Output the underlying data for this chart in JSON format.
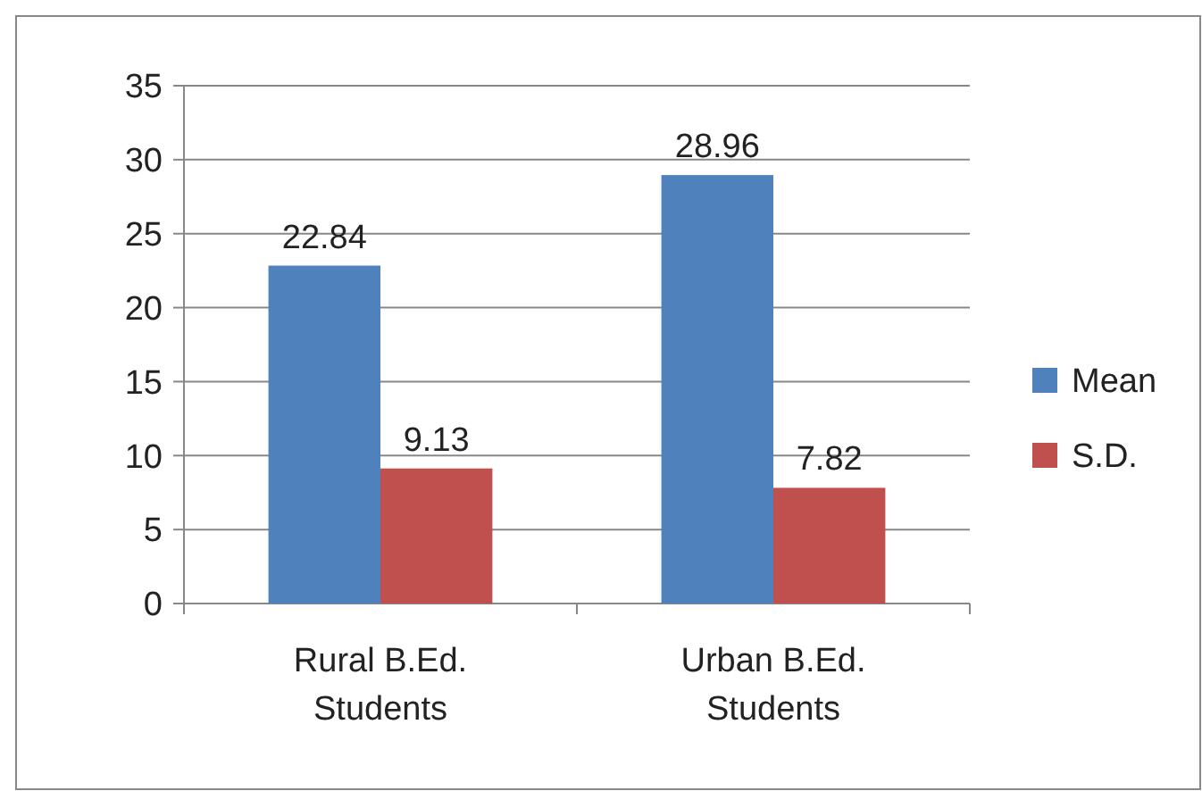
{
  "chart_data": {
    "type": "bar",
    "categories": [
      "Rural B.Ed.\nStudents",
      "Urban B.Ed.\nStudents"
    ],
    "series": [
      {
        "name": "Mean",
        "color": "#4f81bd",
        "values": [
          22.84,
          28.96
        ]
      },
      {
        "name": "S.D.",
        "color": "#c0504d",
        "values": [
          9.13,
          7.82
        ]
      }
    ],
    "ylim": [
      0,
      35
    ],
    "yticks": [
      0,
      5,
      10,
      15,
      20,
      25,
      30,
      35
    ],
    "grid": "y",
    "legend": "right",
    "data_labels": true
  }
}
